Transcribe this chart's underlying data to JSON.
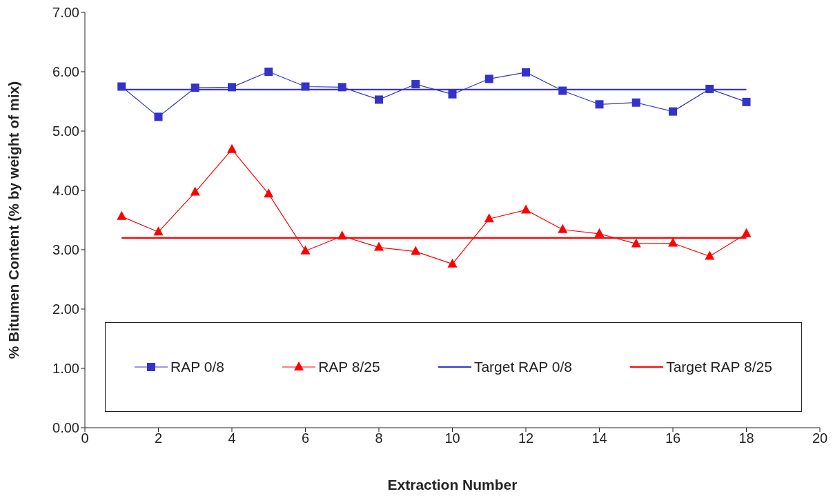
{
  "chart_data": {
    "type": "line",
    "xlabel": "Extraction Number",
    "ylabel": "% Bitumen Content (% by weight of mix)",
    "x": [
      1,
      2,
      3,
      4,
      5,
      6,
      7,
      8,
      9,
      10,
      11,
      12,
      13,
      14,
      15,
      16,
      17,
      18
    ],
    "series": [
      {
        "name": "RAP 0/8",
        "color": "#3333cc",
        "marker": "square",
        "values": [
          5.75,
          5.24,
          5.73,
          5.74,
          6.0,
          5.75,
          5.74,
          5.53,
          5.79,
          5.62,
          5.88,
          5.99,
          5.68,
          5.45,
          5.48,
          5.33,
          5.71,
          5.49
        ]
      },
      {
        "name": "RAP 8/25",
        "color": "#ff0000",
        "marker": "triangle",
        "values": [
          3.56,
          3.3,
          3.97,
          4.69,
          3.94,
          2.98,
          3.23,
          3.04,
          2.97,
          2.76,
          3.52,
          3.67,
          3.34,
          3.27,
          3.1,
          3.11,
          2.89,
          3.27
        ]
      },
      {
        "name": "Target RAP 0/8",
        "color": "#3333cc",
        "marker": "none",
        "values": [
          5.7,
          5.7,
          5.7,
          5.7,
          5.7,
          5.7,
          5.7,
          5.7,
          5.7,
          5.7,
          5.7,
          5.7,
          5.7,
          5.7,
          5.7,
          5.7,
          5.7,
          5.7
        ]
      },
      {
        "name": "Target RAP 8/25",
        "color": "#ff0000",
        "marker": "none",
        "values": [
          3.2,
          3.2,
          3.2,
          3.2,
          3.2,
          3.2,
          3.2,
          3.2,
          3.2,
          3.2,
          3.2,
          3.2,
          3.2,
          3.2,
          3.2,
          3.2,
          3.2,
          3.2
        ]
      }
    ],
    "xlim": [
      0,
      20
    ],
    "xticks": [
      0,
      2,
      4,
      6,
      8,
      10,
      12,
      14,
      16,
      18,
      20
    ],
    "ylim": [
      0,
      7
    ],
    "yticks": [
      {
        "value": 0,
        "label": "0.00"
      },
      {
        "value": 1,
        "label": "1.00"
      },
      {
        "value": 2,
        "label": "2.00"
      },
      {
        "value": 3,
        "label": "3.00"
      },
      {
        "value": 4,
        "label": "4.00"
      },
      {
        "value": 5,
        "label": "5.00"
      },
      {
        "value": 6,
        "label": "6.00"
      },
      {
        "value": 7,
        "label": "7.00"
      }
    ],
    "grid": false,
    "legend": "bottom"
  }
}
